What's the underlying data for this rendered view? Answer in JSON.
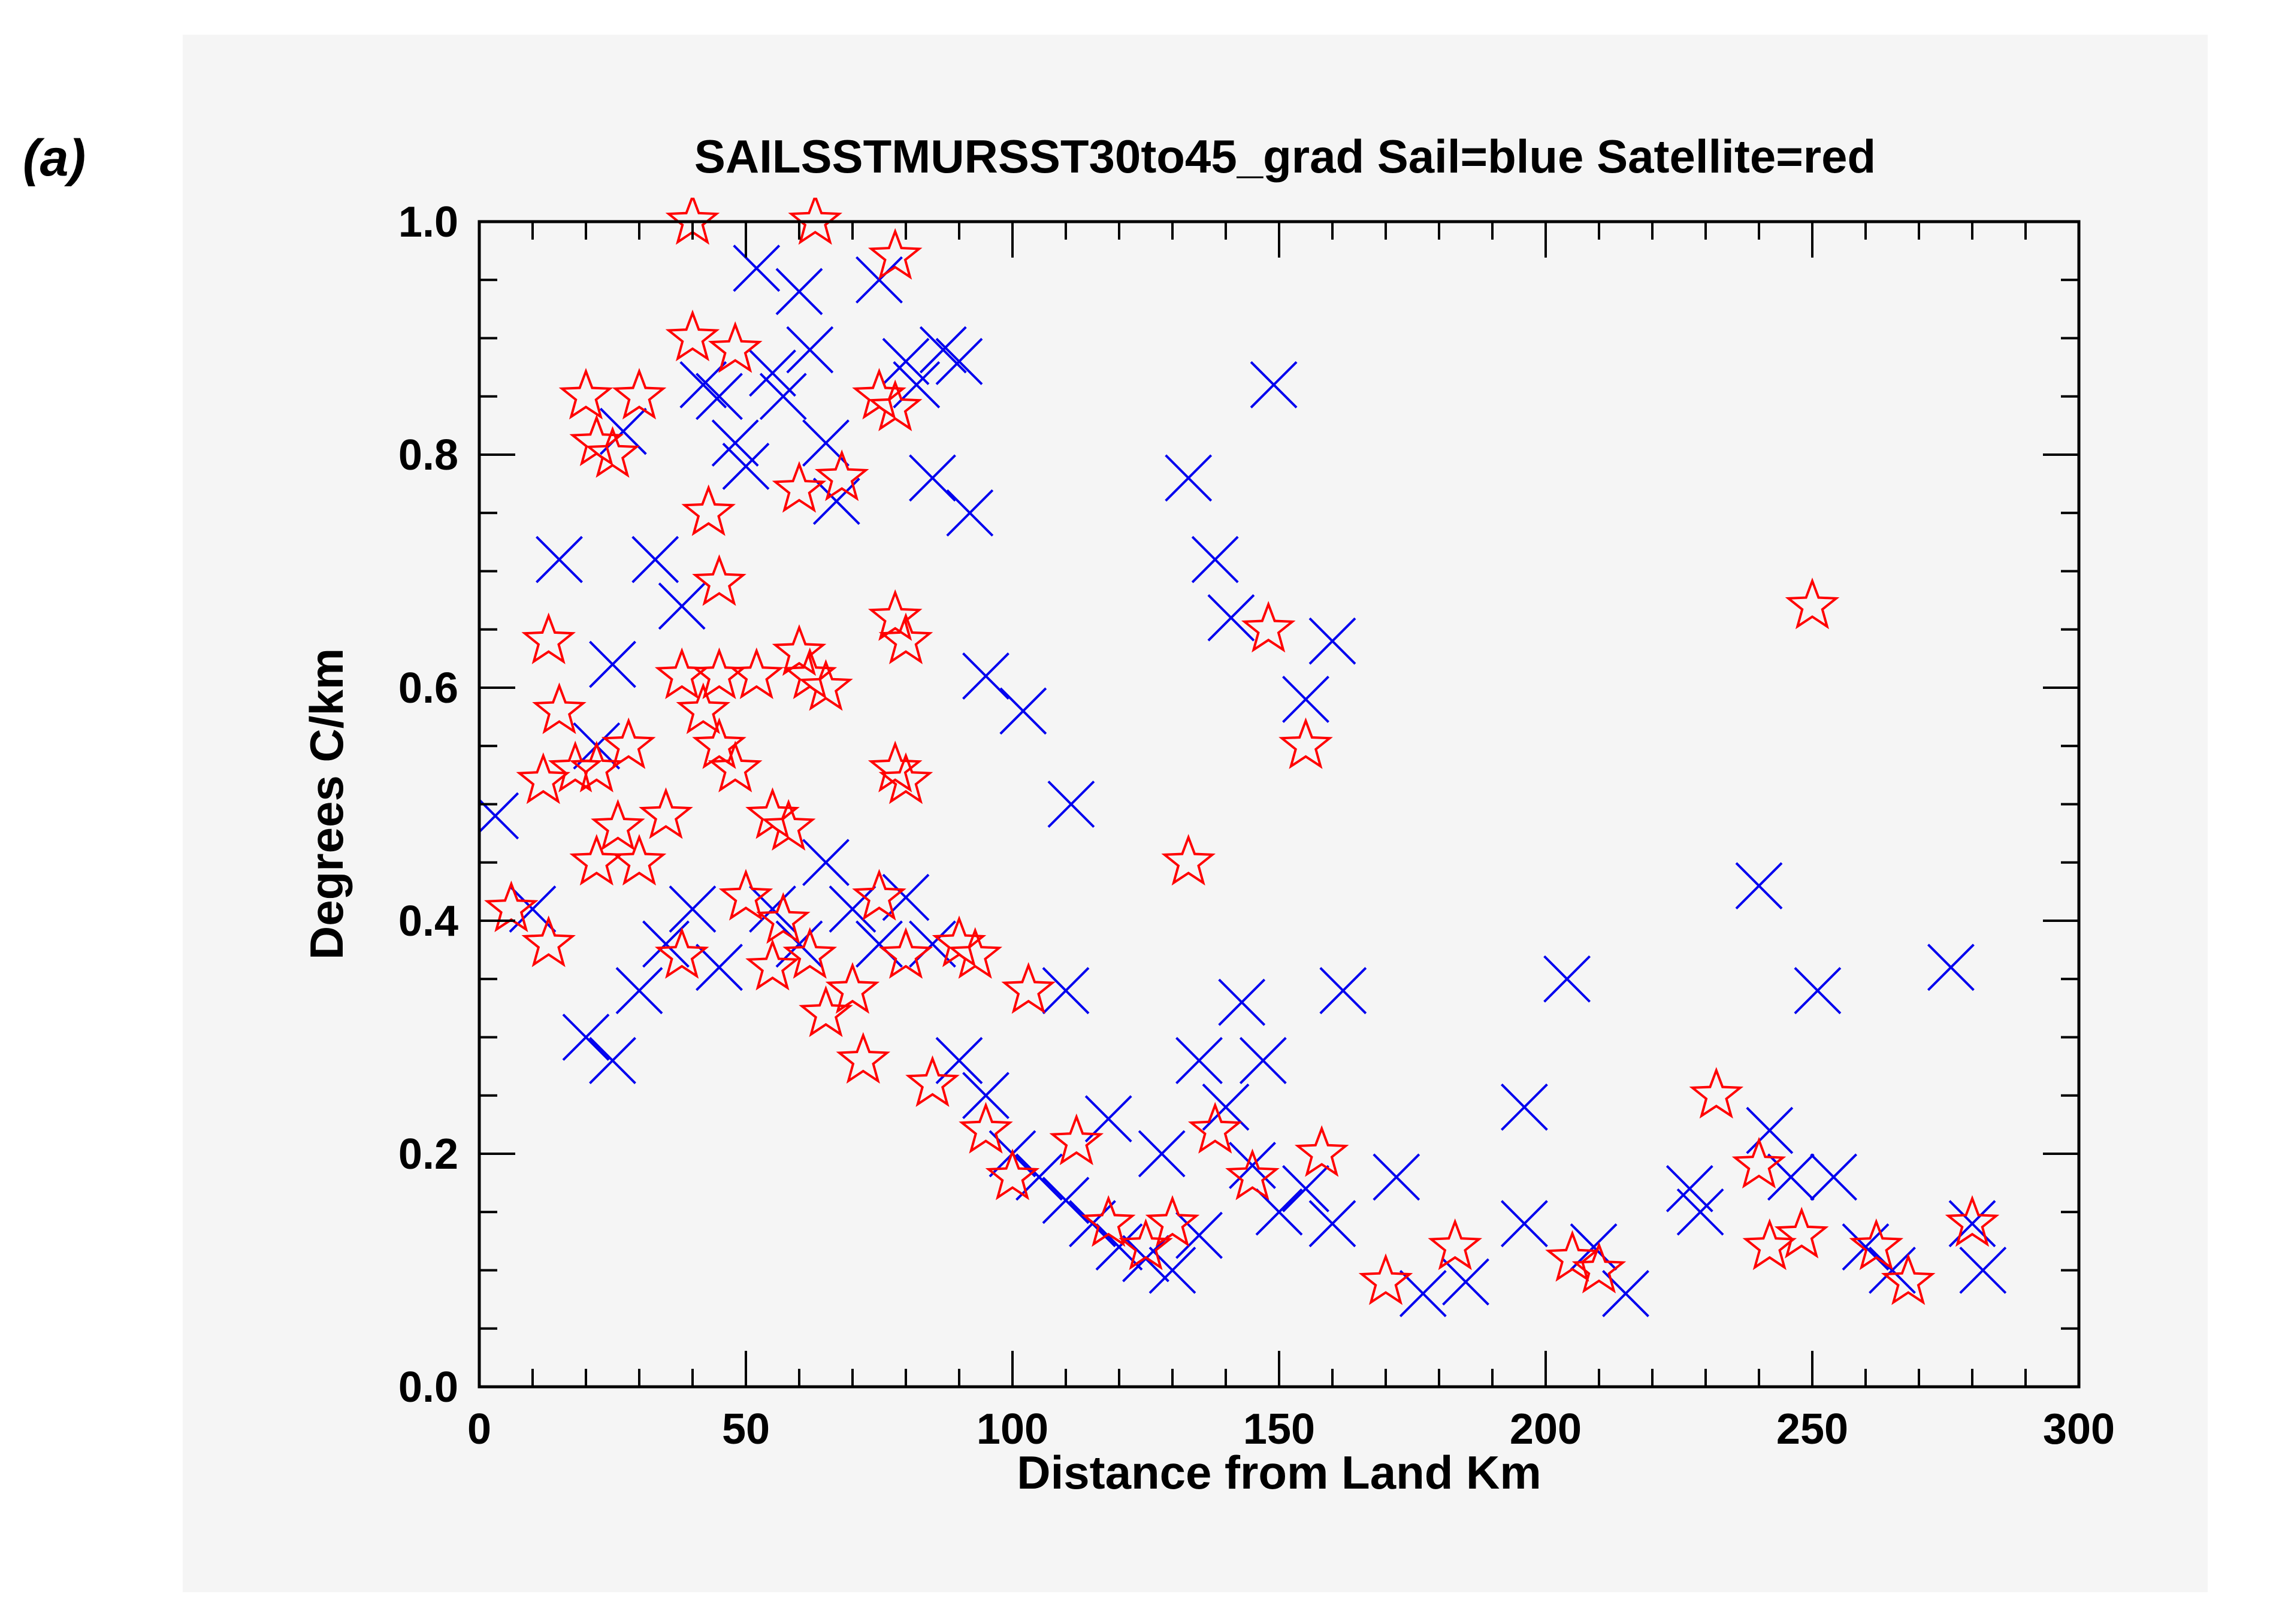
{
  "panel_label": "(a)",
  "chart_data": {
    "type": "scatter",
    "title": "SAILSSTMURSST30to45_grad Sail=blue Satellite=red",
    "xlabel": "Distance from Land Km",
    "ylabel": "Degrees C/km",
    "xlim": [
      0,
      300
    ],
    "ylim": [
      0,
      1.0
    ],
    "x_ticks": [
      "0",
      "50",
      "100",
      "150",
      "200",
      "250",
      "300"
    ],
    "y_ticks": [
      "0.0",
      "0.2",
      "0.4",
      "0.6",
      "0.8",
      "1.0"
    ],
    "grid": false,
    "legend": "in-title",
    "background_color": "#f5f5f5",
    "series": [
      {
        "name": "Sail",
        "color": "#0000ee",
        "marker": "x",
        "points": [
          [
            3,
            0.49
          ],
          [
            10,
            0.41
          ],
          [
            15,
            0.71
          ],
          [
            25,
            0.62
          ],
          [
            22,
            0.55
          ],
          [
            27,
            0.82
          ],
          [
            33,
            0.71
          ],
          [
            38,
            0.67
          ],
          [
            42,
            0.86
          ],
          [
            45,
            0.85
          ],
          [
            48,
            0.81
          ],
          [
            50,
            0.79
          ],
          [
            52,
            0.96
          ],
          [
            55,
            0.87
          ],
          [
            57,
            0.85
          ],
          [
            60,
            0.94
          ],
          [
            62,
            0.89
          ],
          [
            65,
            0.81
          ],
          [
            67,
            0.76
          ],
          [
            75,
            0.95
          ],
          [
            80,
            0.88
          ],
          [
            82,
            0.86
          ],
          [
            87,
            0.89
          ],
          [
            90,
            0.88
          ],
          [
            85,
            0.78
          ],
          [
            92,
            0.75
          ],
          [
            95,
            0.61
          ],
          [
            102,
            0.58
          ],
          [
            111,
            0.5
          ],
          [
            110,
            0.34
          ],
          [
            118,
            0.23
          ],
          [
            128,
            0.2
          ],
          [
            133,
            0.78
          ],
          [
            138,
            0.71
          ],
          [
            141,
            0.66
          ],
          [
            149,
            0.86
          ],
          [
            155,
            0.59
          ],
          [
            160,
            0.64
          ],
          [
            143,
            0.33
          ],
          [
            147,
            0.28
          ],
          [
            135,
            0.28
          ],
          [
            162,
            0.34
          ],
          [
            172,
            0.18
          ],
          [
            177,
            0.08
          ],
          [
            185,
            0.09
          ],
          [
            196,
            0.24
          ],
          [
            204,
            0.35
          ],
          [
            196,
            0.14
          ],
          [
            209,
            0.12
          ],
          [
            215,
            0.08
          ],
          [
            227,
            0.17
          ],
          [
            229,
            0.15
          ],
          [
            240,
            0.43
          ],
          [
            242,
            0.22
          ],
          [
            246,
            0.18
          ],
          [
            251,
            0.34
          ],
          [
            254,
            0.18
          ],
          [
            260,
            0.12
          ],
          [
            265,
            0.1
          ],
          [
            276,
            0.36
          ],
          [
            280,
            0.14
          ],
          [
            282,
            0.1
          ],
          [
            20,
            0.3
          ],
          [
            25,
            0.28
          ],
          [
            30,
            0.34
          ],
          [
            35,
            0.38
          ],
          [
            40,
            0.41
          ],
          [
            45,
            0.36
          ],
          [
            55,
            0.41
          ],
          [
            60,
            0.38
          ],
          [
            65,
            0.45
          ],
          [
            70,
            0.41
          ],
          [
            75,
            0.38
          ],
          [
            80,
            0.42
          ],
          [
            85,
            0.38
          ],
          [
            90,
            0.28
          ],
          [
            95,
            0.25
          ],
          [
            100,
            0.2
          ],
          [
            105,
            0.18
          ],
          [
            110,
            0.16
          ],
          [
            115,
            0.14
          ],
          [
            120,
            0.12
          ],
          [
            125,
            0.11
          ],
          [
            130,
            0.1
          ],
          [
            135,
            0.13
          ],
          [
            140,
            0.24
          ],
          [
            145,
            0.19
          ],
          [
            150,
            0.15
          ],
          [
            155,
            0.17
          ],
          [
            160,
            0.14
          ]
        ]
      },
      {
        "name": "Satellite",
        "color": "#ff0000",
        "marker": "star",
        "points": [
          [
            6,
            0.41
          ],
          [
            13,
            0.38
          ],
          [
            13,
            0.64
          ],
          [
            15,
            0.58
          ],
          [
            12,
            0.52
          ],
          [
            20,
            0.85
          ],
          [
            22,
            0.81
          ],
          [
            25,
            0.8
          ],
          [
            30,
            0.85
          ],
          [
            18,
            0.53
          ],
          [
            22,
            0.53
          ],
          [
            26,
            0.48
          ],
          [
            28,
            0.55
          ],
          [
            22,
            0.45
          ],
          [
            40,
            1.0
          ],
          [
            40,
            0.9
          ],
          [
            48,
            0.89
          ],
          [
            43,
            0.75
          ],
          [
            45,
            0.69
          ],
          [
            45,
            0.61
          ],
          [
            38,
            0.61
          ],
          [
            42,
            0.58
          ],
          [
            45,
            0.55
          ],
          [
            48,
            0.53
          ],
          [
            52,
            0.61
          ],
          [
            55,
            0.49
          ],
          [
            58,
            0.48
          ],
          [
            60,
            0.63
          ],
          [
            62,
            0.61
          ],
          [
            65,
            0.6
          ],
          [
            60,
            0.77
          ],
          [
            68,
            0.78
          ],
          [
            75,
            0.85
          ],
          [
            78,
            0.84
          ],
          [
            78,
            0.97
          ],
          [
            63,
            1.0
          ],
          [
            78,
            0.66
          ],
          [
            80,
            0.64
          ],
          [
            78,
            0.53
          ],
          [
            80,
            0.52
          ],
          [
            75,
            0.42
          ],
          [
            80,
            0.37
          ],
          [
            90,
            0.38
          ],
          [
            93,
            0.37
          ],
          [
            103,
            0.34
          ],
          [
            112,
            0.21
          ],
          [
            118,
            0.14
          ],
          [
            130,
            0.14
          ],
          [
            133,
            0.45
          ],
          [
            148,
            0.65
          ],
          [
            155,
            0.55
          ],
          [
            138,
            0.22
          ],
          [
            145,
            0.18
          ],
          [
            158,
            0.2
          ],
          [
            170,
            0.09
          ],
          [
            183,
            0.12
          ],
          [
            205,
            0.11
          ],
          [
            210,
            0.1
          ],
          [
            232,
            0.25
          ],
          [
            240,
            0.19
          ],
          [
            242,
            0.12
          ],
          [
            248,
            0.13
          ],
          [
            250,
            0.67
          ],
          [
            262,
            0.12
          ],
          [
            268,
            0.09
          ],
          [
            280,
            0.14
          ],
          [
            35,
            0.49
          ],
          [
            30,
            0.45
          ],
          [
            38,
            0.37
          ],
          [
            55,
            0.36
          ],
          [
            62,
            0.37
          ],
          [
            70,
            0.34
          ],
          [
            50,
            0.42
          ],
          [
            57,
            0.4
          ],
          [
            65,
            0.32
          ],
          [
            72,
            0.28
          ],
          [
            85,
            0.26
          ],
          [
            95,
            0.22
          ],
          [
            100,
            0.18
          ],
          [
            125,
            0.12
          ]
        ]
      }
    ]
  }
}
